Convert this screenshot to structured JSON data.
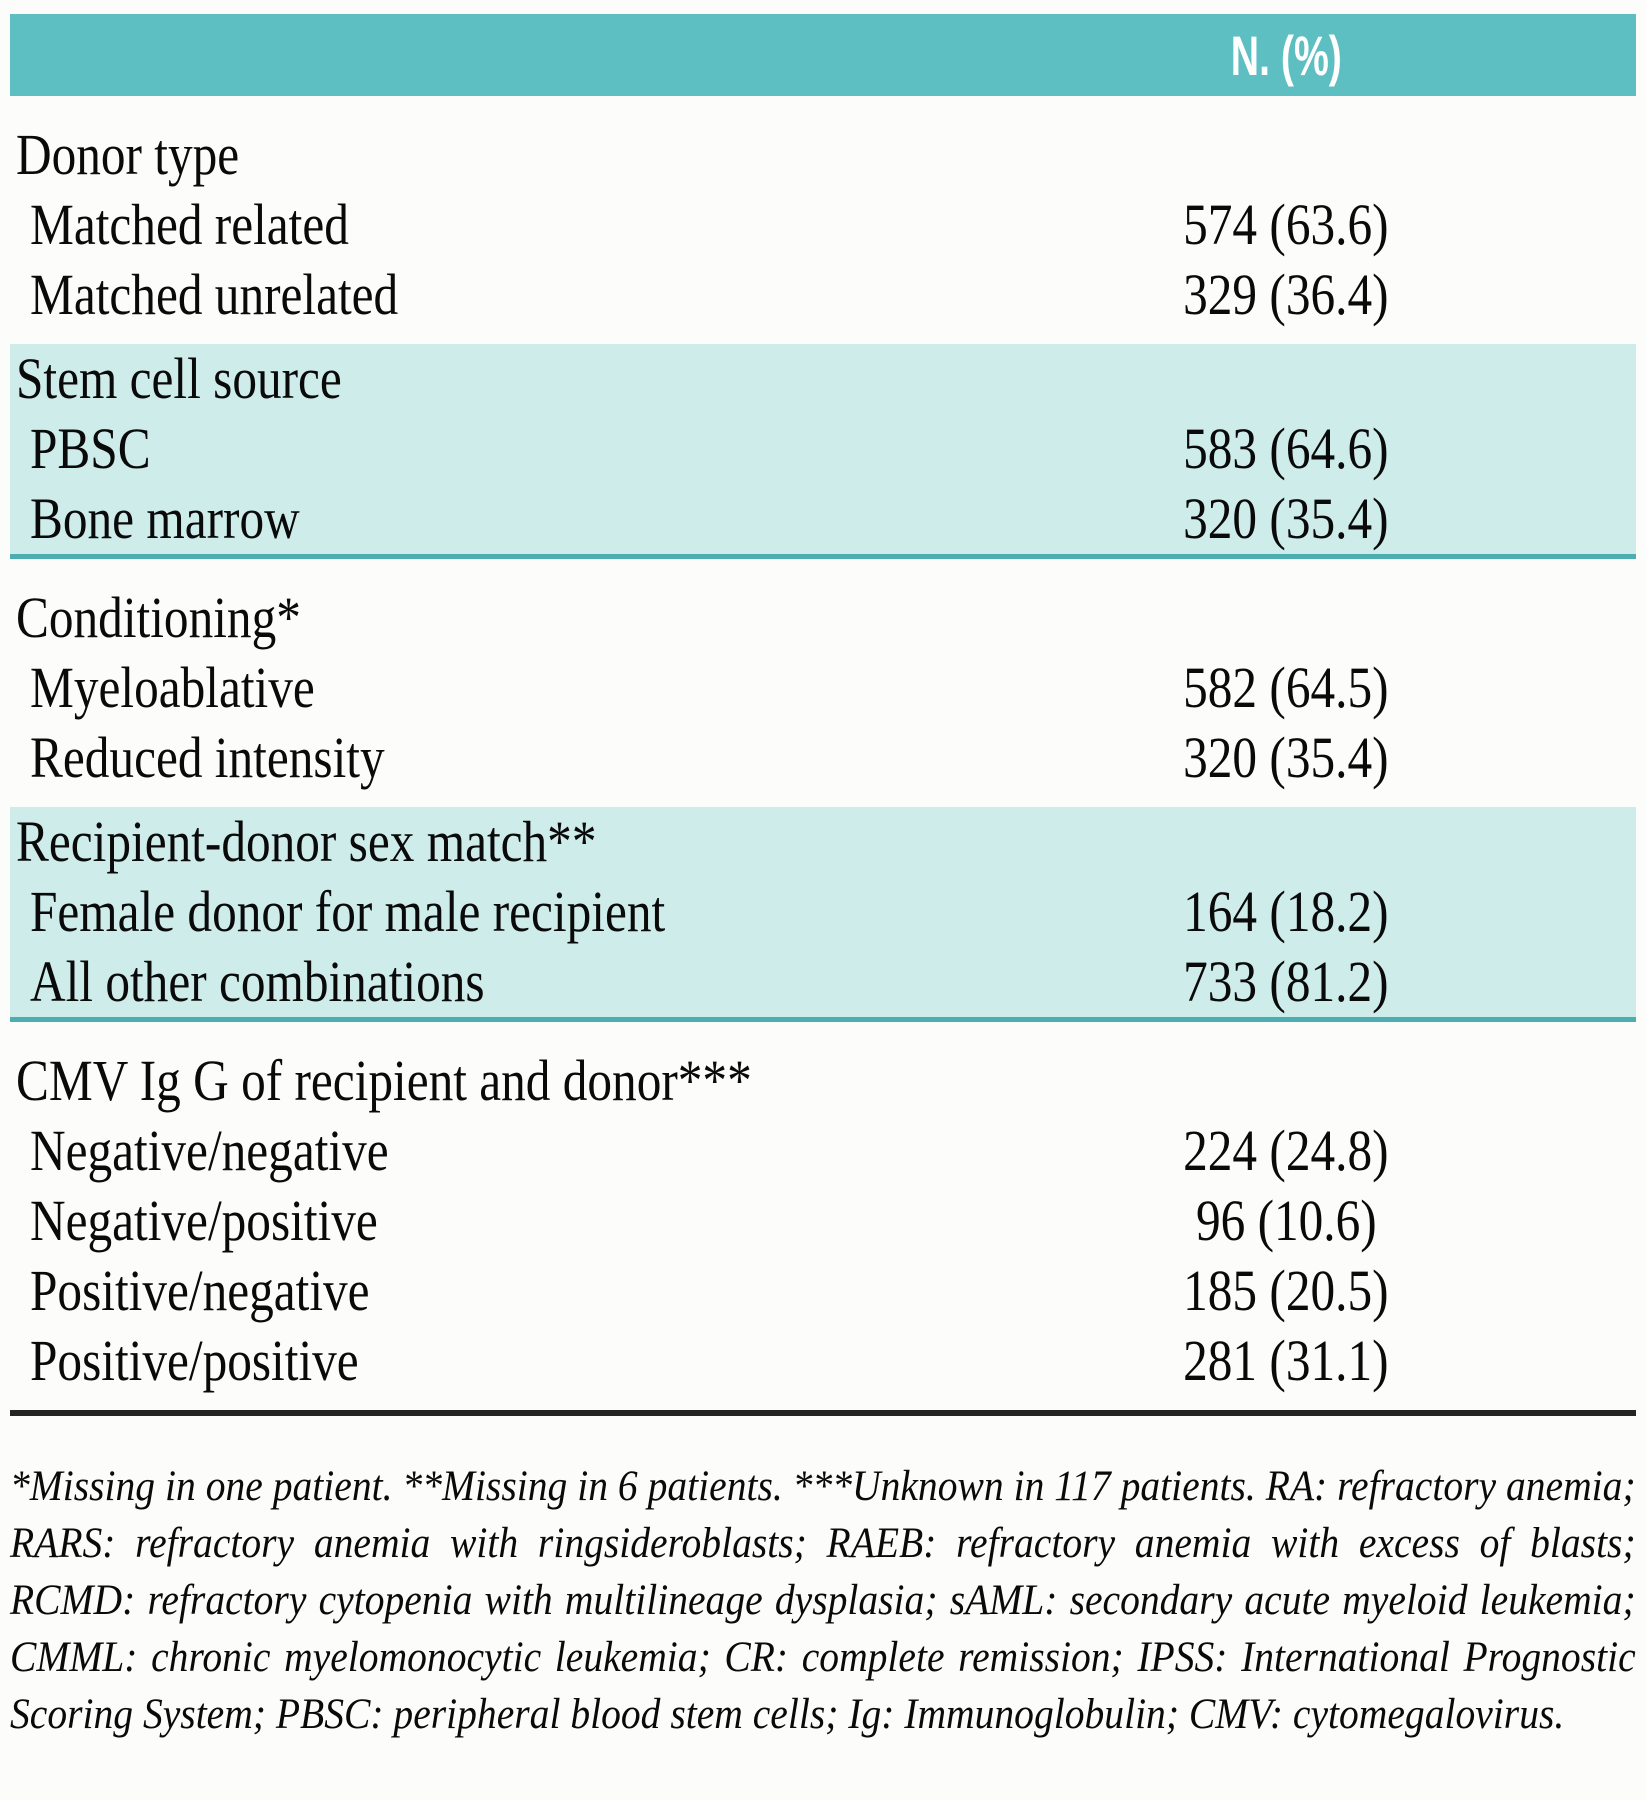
{
  "theme": {
    "header_bg": "#5dbfc1",
    "shaded_bg": "#cdecea",
    "shaded_border": "#4caeb1",
    "rule_color": "#242424",
    "page_bg": "#fcfdfb",
    "header_text": "#ffffff",
    "body_text": "#0a0a0a"
  },
  "table": {
    "header": {
      "value_label": "N. (%)"
    },
    "sections": [
      {
        "shaded": false,
        "category": "Donor type",
        "rows": [
          {
            "label": "Matched related",
            "value": "574 (63.6)"
          },
          {
            "label": "Matched unrelated",
            "value": "329 (36.4)"
          }
        ]
      },
      {
        "shaded": true,
        "category": "Stem cell source",
        "rows": [
          {
            "label": "PBSC",
            "value": "583 (64.6)"
          },
          {
            "label": "Bone marrow",
            "value": "320 (35.4)"
          }
        ]
      },
      {
        "shaded": false,
        "category": "Conditioning*",
        "rows": [
          {
            "label": "Myeloablative",
            "value": "582 (64.5)"
          },
          {
            "label": "Reduced intensity",
            "value": "320 (35.4)"
          }
        ]
      },
      {
        "shaded": true,
        "category": "Recipient-donor sex match**",
        "rows": [
          {
            "label": "Female donor for male recipient",
            "value": "164 (18.2)"
          },
          {
            "label": "All other combinations",
            "value": "733 (81.2)"
          }
        ]
      },
      {
        "shaded": false,
        "category": "CMV Ig G of recipient and donor***",
        "rows": [
          {
            "label": "Negative/negative",
            "value": "224 (24.8)"
          },
          {
            "label": "Negative/positive",
            "value": "96 (10.6)"
          },
          {
            "label": "Positive/negative",
            "value": "185 (20.5)"
          },
          {
            "label": "Positive/positive",
            "value": "281 (31.1)"
          }
        ]
      }
    ]
  },
  "footnote": {
    "text": "*Missing in one patient. **Missing in 6 patients. ***Unknown in 117 patients.  RA: refractory anemia; RARS: refractory anemia with ringsideroblasts; RAEB: refractory anemia with excess of blasts; RCMD:  refractory cytopenia with multilineage dysplasia; sAML:  secondary acute myeloid leukemia; CMML:  chronic myelomonocytic leukemia; CR: complete remission; IPSS:  International Prognostic Scoring System; PBSC:  peripheral blood stem cells; Ig:  Immunoglobulin; CMV: cytomegalovirus."
  }
}
